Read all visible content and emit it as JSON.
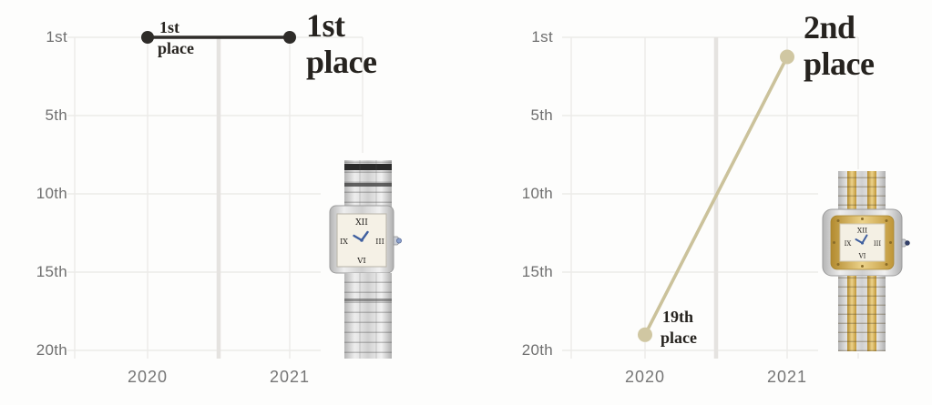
{
  "colors": {
    "background": "#fdfdfc",
    "gridline": "#ecebe8",
    "year_divider": "#e5e3e0",
    "axis_label": "#6f6f6f",
    "annotation_text": "#26231f",
    "left_line": "#2e2c29",
    "right_line": "#cbc29b"
  },
  "chart_data": [
    {
      "type": "line",
      "x": [
        "2020",
        "2021"
      ],
      "values": [
        1,
        1
      ],
      "rank_axis": {
        "ticks": [
          "1st",
          "5th",
          "10th",
          "15th",
          "20th"
        ],
        "tick_ranks": [
          1,
          5,
          10,
          15,
          20
        ],
        "inverted": true,
        "ylim": [
          1,
          20
        ]
      },
      "grid": true,
      "legend": null,
      "annotations": {
        "start": {
          "lines": [
            "1st",
            "place"
          ]
        },
        "end": {
          "lines": [
            "1st",
            "place"
          ]
        }
      },
      "line_color": "#2e2c29",
      "dot_color": "#2e2c29",
      "watch_icon": "steel-square-watch"
    },
    {
      "type": "line",
      "x": [
        "2020",
        "2021"
      ],
      "values": [
        19,
        2
      ],
      "rank_axis": {
        "ticks": [
          "1st",
          "5th",
          "10th",
          "15th",
          "20th"
        ],
        "tick_ranks": [
          1,
          5,
          10,
          15,
          20
        ],
        "inverted": true,
        "ylim": [
          1,
          20
        ]
      },
      "grid": true,
      "legend": null,
      "annotations": {
        "start": {
          "lines": [
            "19th",
            "place"
          ]
        },
        "end": {
          "lines": [
            "2nd",
            "place"
          ]
        }
      },
      "line_color": "#cbc29b",
      "dot_color": "#d0c7a2",
      "watch_icon": "two-tone-square-watch"
    }
  ]
}
